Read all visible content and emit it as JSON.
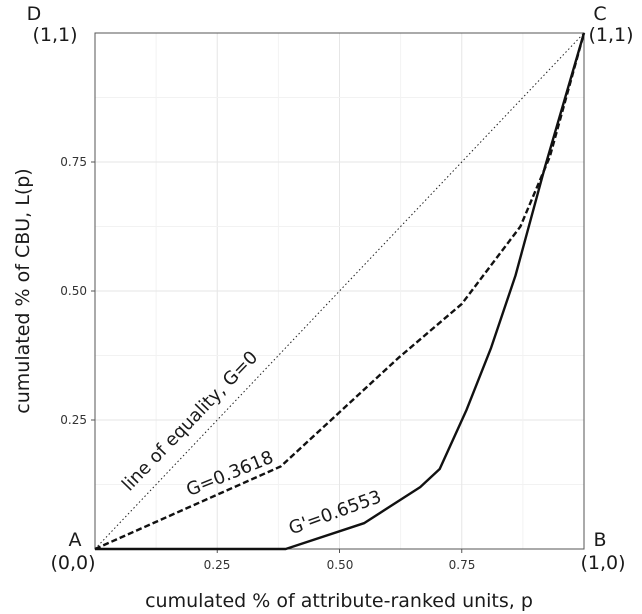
{
  "chart_data": {
    "type": "line",
    "title": "",
    "xlabel": "cumulated % of attribute-ranked units, p",
    "ylabel": "cumulated % of  CBU, L(p)",
    "xlim": [
      0,
      1
    ],
    "ylim": [
      0,
      1
    ],
    "grid": true,
    "x_ticks": [
      "0.25",
      "0.50",
      "0.75"
    ],
    "y_ticks": [
      "0.25",
      "0.50",
      "0.75"
    ],
    "corners": {
      "A": {
        "letter": "A",
        "coord": "(0,0)"
      },
      "B": {
        "letter": "B",
        "coord": "(1,0)"
      },
      "C": {
        "letter": "C",
        "coord": "(1,1)"
      },
      "D": {
        "letter": "D",
        "coord": "(1,1)"
      }
    },
    "series": [
      {
        "style": "dotted",
        "label": "line of equality, G=0",
        "points": [
          [
            0,
            0
          ],
          [
            1,
            1
          ]
        ]
      },
      {
        "style": "dashed",
        "label": "G=0.3618",
        "points": [
          [
            0,
            0
          ],
          [
            0.38,
            0.16
          ],
          [
            0.62,
            0.37
          ],
          [
            0.75,
            0.475
          ],
          [
            0.87,
            0.625
          ],
          [
            0.93,
            0.76
          ],
          [
            1,
            1
          ]
        ]
      },
      {
        "style": "solid",
        "label": "G'=0.6553",
        "points": [
          [
            0,
            0
          ],
          [
            0.39,
            0
          ],
          [
            0.55,
            0.05
          ],
          [
            0.665,
            0.12
          ],
          [
            0.705,
            0.155
          ],
          [
            0.76,
            0.27
          ],
          [
            0.81,
            0.39
          ],
          [
            0.86,
            0.53
          ],
          [
            0.92,
            0.74
          ],
          [
            1,
            1
          ]
        ]
      }
    ]
  }
}
